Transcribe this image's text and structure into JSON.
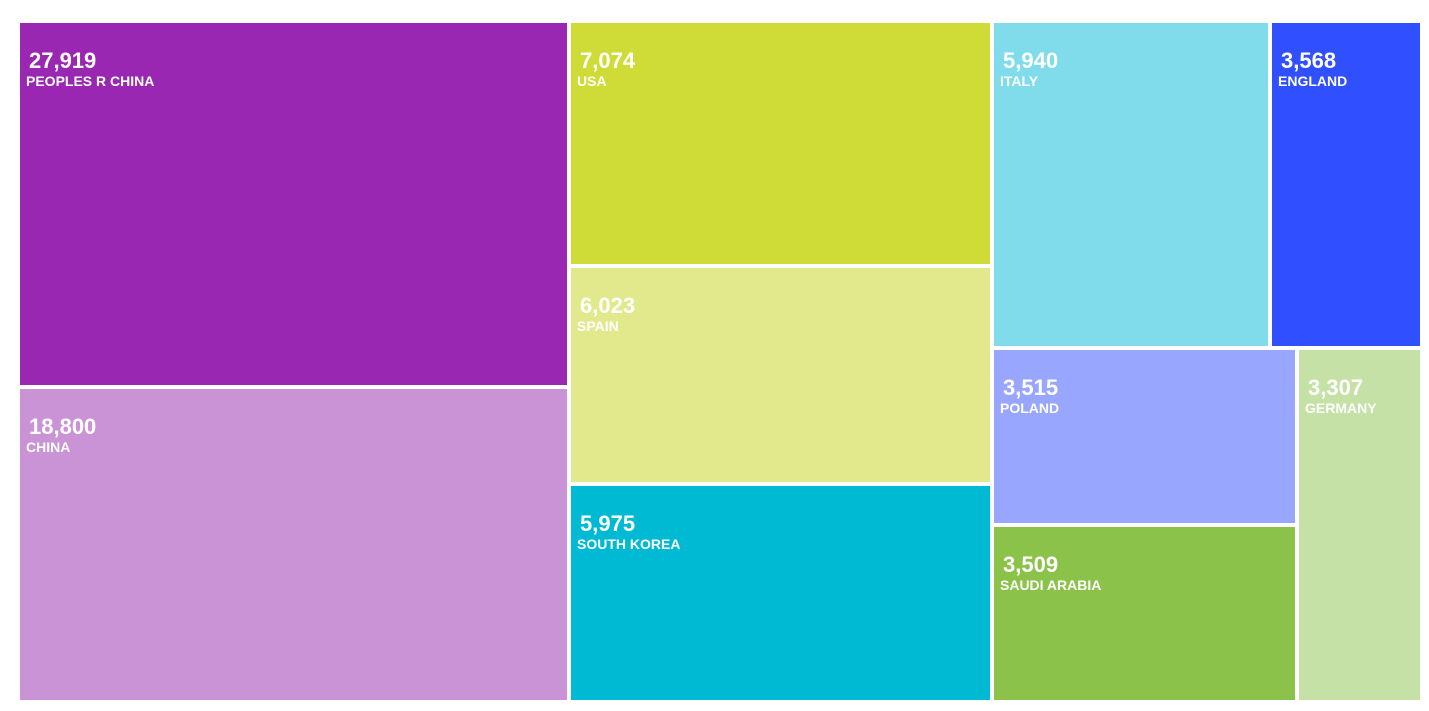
{
  "chart_data": {
    "type": "treemap",
    "title": "",
    "items": [
      {
        "label": "PEOPLES R CHINA",
        "value": 27919,
        "value_text": "27,919",
        "color": "#9a27b1"
      },
      {
        "label": "CHINA",
        "value": 18800,
        "value_text": "18,800",
        "color": "#ca93d6"
      },
      {
        "label": "USA",
        "value": 7074,
        "value_text": "7,074",
        "color": "#cfdc38"
      },
      {
        "label": "SPAIN",
        "value": 6023,
        "value_text": "6,023",
        "color": "#e2e98c"
      },
      {
        "label": "SOUTH KOREA",
        "value": 5975,
        "value_text": "5,975",
        "color": "#00bad4"
      },
      {
        "label": "ITALY",
        "value": 5940,
        "value_text": "5,940",
        "color": "#80dcea"
      },
      {
        "label": "ENGLAND",
        "value": 3568,
        "value_text": "3,568",
        "color": "#304ffe"
      },
      {
        "label": "POLAND",
        "value": 3515,
        "value_text": "3,515",
        "color": "#98a6fe"
      },
      {
        "label": "SAUDI ARABIA",
        "value": 3509,
        "value_text": "3,509",
        "color": "#8bc34a"
      },
      {
        "label": "GERMANY",
        "value": 3307,
        "value_text": "3,307",
        "color": "#c5e1a5"
      }
    ]
  }
}
